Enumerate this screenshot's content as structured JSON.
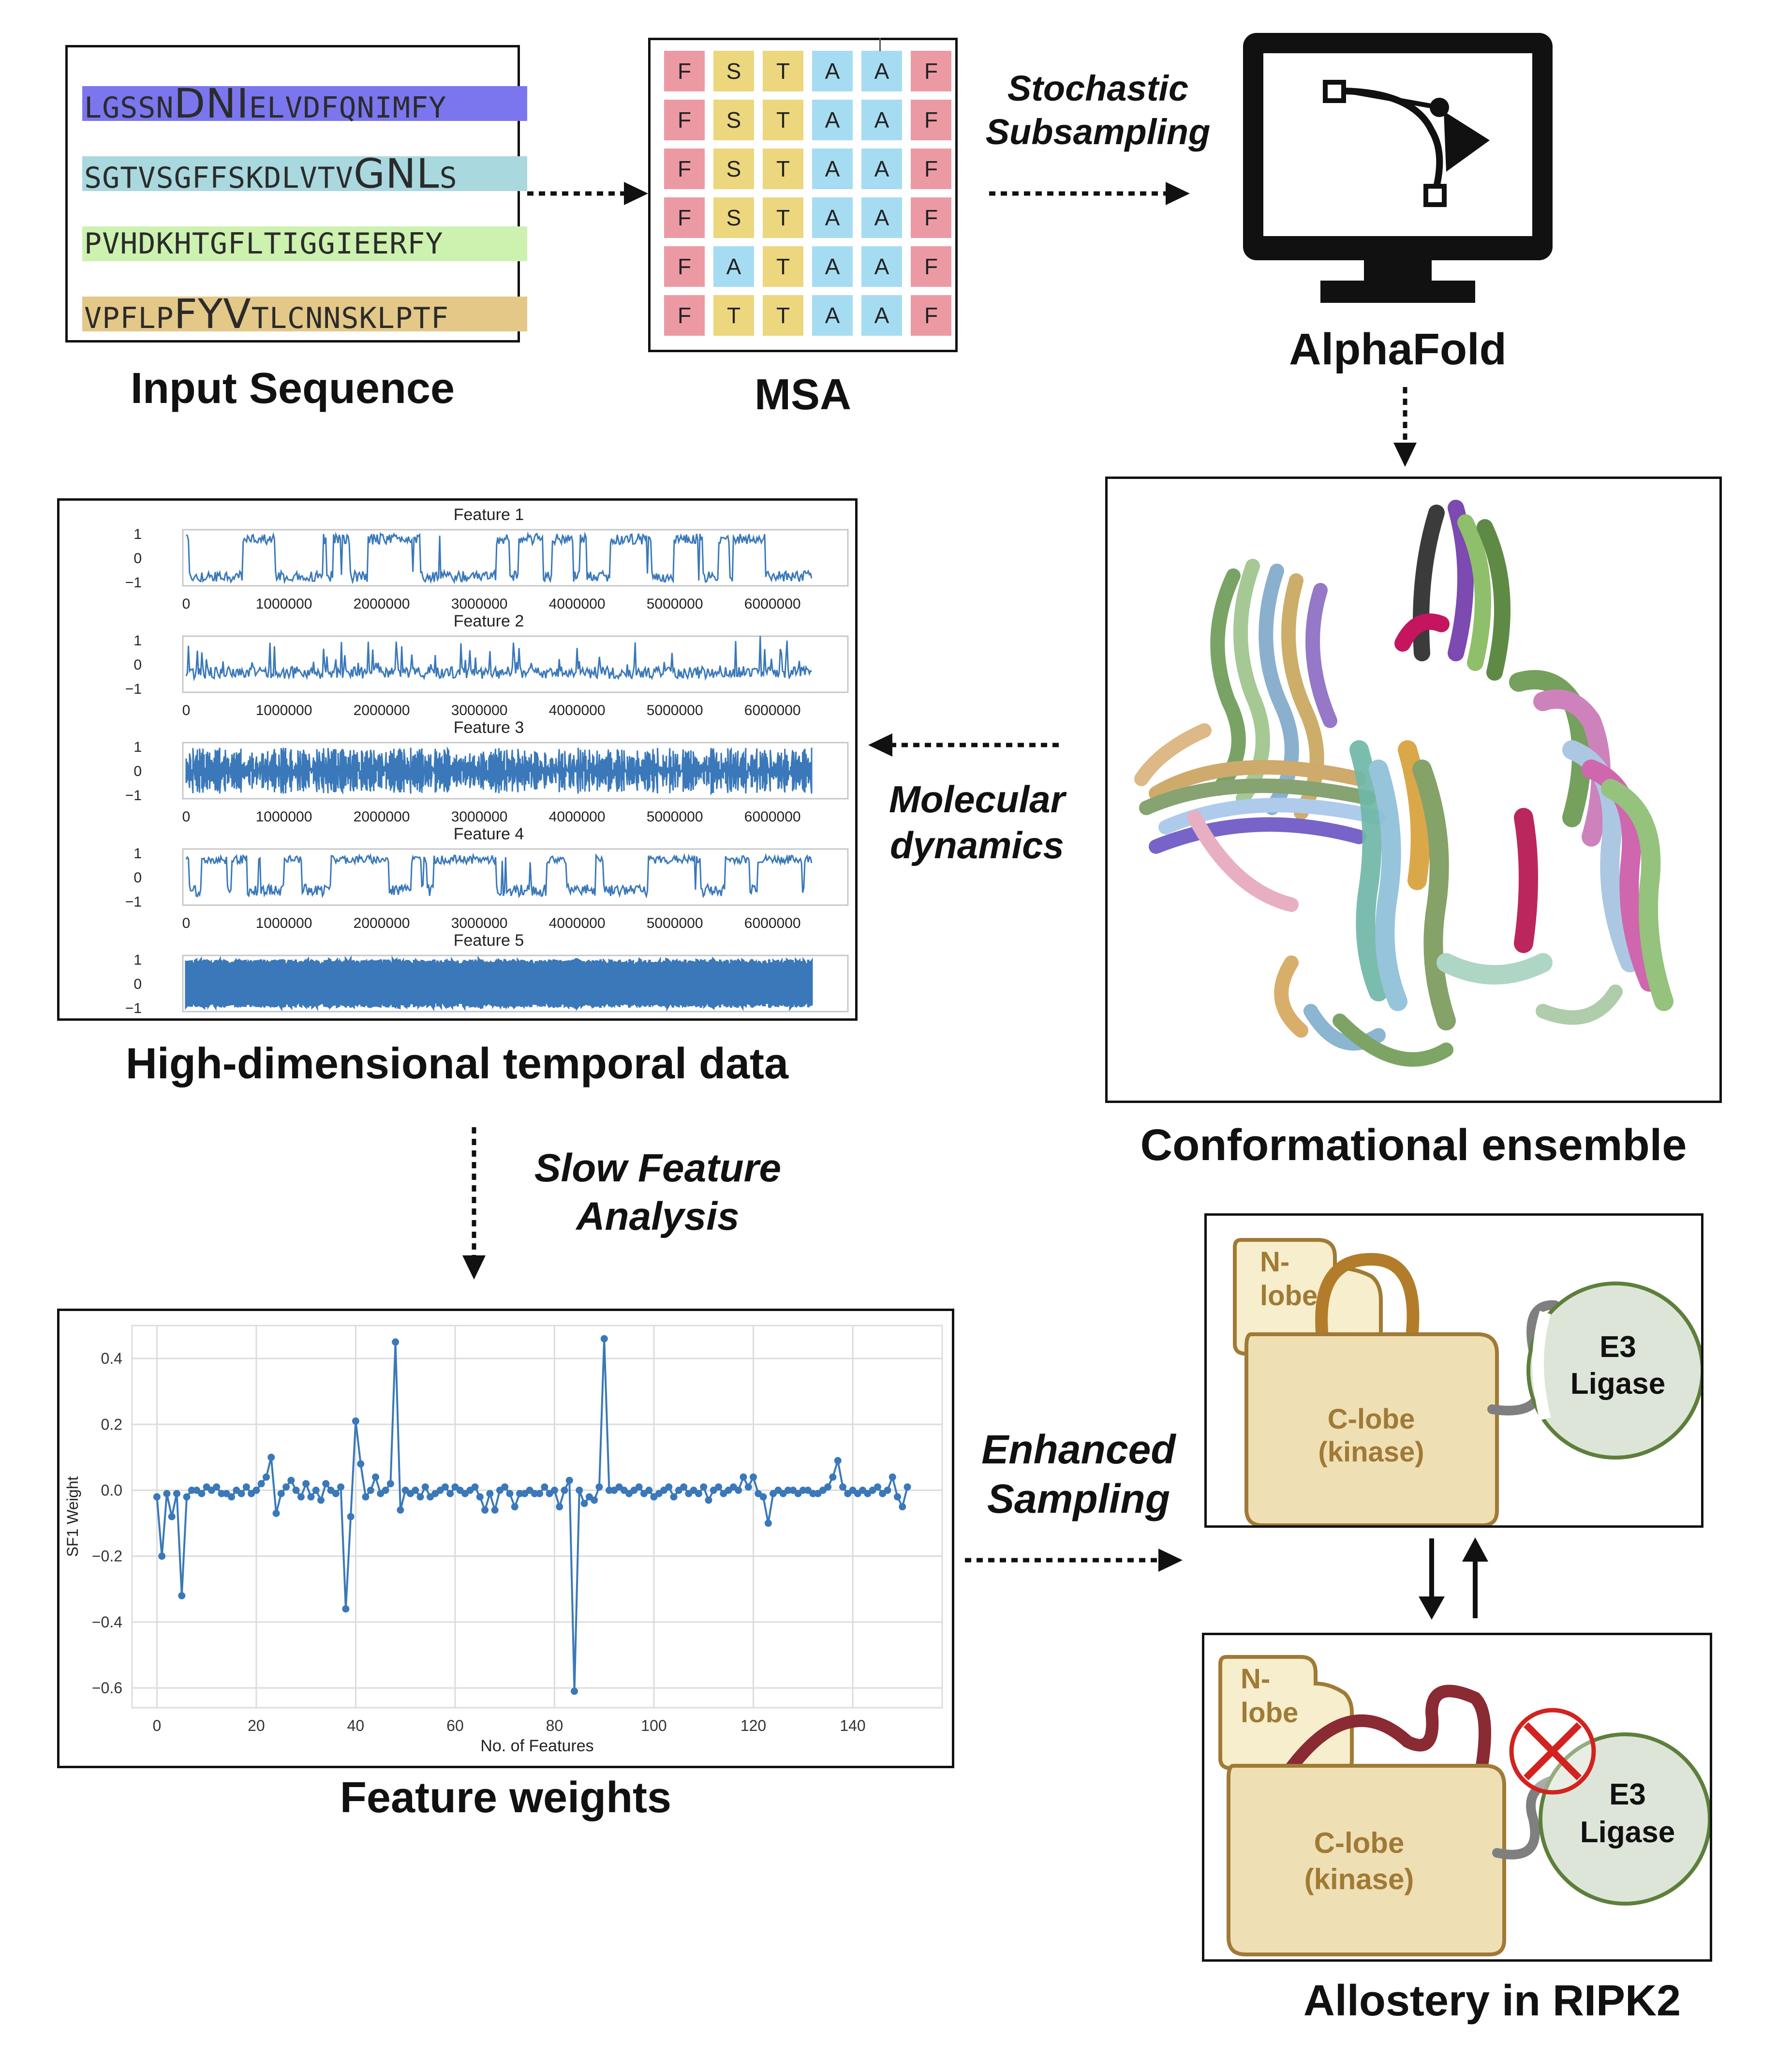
{
  "captions": {
    "input_sequence": "Input Sequence",
    "msa": "MSA",
    "alphafold": "AlphaFold",
    "temporal": "High-dimensional temporal data",
    "ensemble": "Conformational ensemble",
    "weights": "Feature weights",
    "allostery": "Allostery in RIPK2"
  },
  "arrows": {
    "stochastic_1": "Stochastic",
    "stochastic_2": "Subsampling",
    "md_1": "Molecular",
    "md_2": "dynamics",
    "sfa_1": "Slow Feature",
    "sfa_2": "Analysis",
    "enh_1": "Enhanced",
    "enh_2": "Sampling"
  },
  "sequences": [
    {
      "pre": "LGSSN",
      "big": "DNI",
      "post": "ELVDFQNIMFY",
      "color": "#7b76ee"
    },
    {
      "pre": "SGTVSGFFSKDLVTV",
      "big": "GNL",
      "post": "S",
      "color": "#a9d8de"
    },
    {
      "pre": "PVHDKHTGFLTIGGIEERFY",
      "big": "",
      "post": "",
      "color": "#cdf2b0"
    },
    {
      "pre": "VPFLP",
      "big": "FYV",
      "post": "TLCNNSKLPTF",
      "color": "#e3c888"
    }
  ],
  "msa_rows": [
    [
      "F",
      "S",
      "T",
      "A",
      "A",
      "F"
    ],
    [
      "F",
      "S",
      "T",
      "A",
      "A",
      "F"
    ],
    [
      "F",
      "S",
      "T",
      "A",
      "A",
      "F"
    ],
    [
      "F",
      "S",
      "T",
      "A",
      "A",
      "F"
    ],
    [
      "F",
      "A",
      "T",
      "A",
      "A",
      "F"
    ],
    [
      "F",
      "T",
      "T",
      "A",
      "A",
      "F"
    ]
  ],
  "features": {
    "titles": [
      "Feature 1",
      "Feature 2",
      "Feature 3",
      "Feature 4",
      "Feature 5"
    ],
    "y_ticks": [
      "1",
      "0",
      "−1"
    ],
    "x_ticks": [
      "0",
      "1000000",
      "2000000",
      "3000000",
      "4000000",
      "5000000",
      "6000000"
    ],
    "x_tick_values": [
      0,
      1000000,
      2000000,
      3000000,
      4000000,
      5000000,
      6000000
    ],
    "x_max": 6400000,
    "color": "#3a78b9"
  },
  "chart_data": {
    "type": "line",
    "xlabel": "No. of Features",
    "ylabel": "SF1 Weight",
    "xlim": [
      -5,
      158
    ],
    "ylim": [
      -0.66,
      0.5
    ],
    "x_ticks": [
      0,
      20,
      40,
      60,
      80,
      100,
      120,
      140
    ],
    "y_ticks": [
      0.4,
      0.2,
      0.0,
      -0.2,
      -0.4,
      -0.6
    ],
    "y_tick_labels": [
      "0.4",
      "0.2",
      "0.0",
      "−0.2",
      "−0.4",
      "−0.6"
    ],
    "grid": true,
    "color": "#3a78b9",
    "x": [
      0,
      1,
      2,
      3,
      4,
      5,
      6,
      7,
      8,
      9,
      10,
      11,
      12,
      13,
      14,
      15,
      16,
      17,
      18,
      19,
      20,
      21,
      22,
      23,
      24,
      25,
      26,
      27,
      28,
      29,
      30,
      31,
      32,
      33,
      34,
      35,
      36,
      37,
      38,
      39,
      40,
      41,
      42,
      43,
      44,
      45,
      46,
      47,
      48,
      49,
      50,
      51,
      52,
      53,
      54,
      55,
      56,
      57,
      58,
      59,
      60,
      61,
      62,
      63,
      64,
      65,
      66,
      67,
      68,
      69,
      70,
      71,
      72,
      73,
      74,
      75,
      76,
      77,
      78,
      79,
      80,
      81,
      82,
      83,
      84,
      85,
      86,
      87,
      88,
      89,
      90,
      91,
      92,
      93,
      94,
      95,
      96,
      97,
      98,
      99,
      100,
      101,
      102,
      103,
      104,
      105,
      106,
      107,
      108,
      109,
      110,
      111,
      112,
      113,
      114,
      115,
      116,
      117,
      118,
      119,
      120,
      121,
      122,
      123,
      124,
      125,
      126,
      127,
      128,
      129,
      130,
      131,
      132,
      133,
      134,
      135,
      136,
      137,
      138,
      139,
      140,
      141,
      142,
      143,
      144,
      145,
      146,
      147,
      148,
      149,
      150,
      151
    ],
    "y": [
      -0.02,
      -0.2,
      -0.01,
      -0.08,
      -0.01,
      -0.32,
      -0.02,
      0.0,
      0.0,
      -0.01,
      0.01,
      0.0,
      0.01,
      -0.01,
      -0.01,
      -0.02,
      0.0,
      -0.01,
      0.01,
      -0.01,
      0.0,
      0.02,
      0.04,
      0.1,
      -0.07,
      -0.01,
      0.01,
      0.03,
      0.0,
      -0.02,
      0.02,
      -0.02,
      0.0,
      -0.03,
      0.02,
      0.0,
      -0.01,
      0.01,
      -0.36,
      -0.08,
      0.21,
      0.08,
      -0.02,
      0.0,
      0.04,
      -0.01,
      0.0,
      0.02,
      0.45,
      -0.06,
      0.0,
      -0.01,
      0.0,
      -0.02,
      0.01,
      -0.02,
      -0.01,
      0.0,
      0.01,
      -0.01,
      0.01,
      0.0,
      -0.01,
      0.0,
      0.01,
      -0.02,
      -0.06,
      -0.01,
      -0.06,
      0.0,
      0.01,
      -0.01,
      -0.05,
      -0.01,
      -0.01,
      0.0,
      -0.01,
      -0.01,
      0.01,
      -0.01,
      0.0,
      -0.05,
      0.0,
      0.03,
      -0.61,
      0.0,
      -0.04,
      -0.02,
      -0.03,
      0.01,
      0.46,
      0.0,
      0.0,
      0.01,
      0.0,
      -0.01,
      0.0,
      0.01,
      -0.01,
      0.0,
      -0.02,
      -0.01,
      0.0,
      0.01,
      -0.02,
      0.0,
      0.01,
      -0.01,
      0.0,
      -0.01,
      0.01,
      -0.03,
      0.0,
      0.01,
      -0.01,
      0.0,
      0.01,
      0.0,
      0.04,
      0.01,
      0.04,
      -0.01,
      -0.02,
      -0.1,
      -0.01,
      0.0,
      -0.01,
      0.0,
      0.0,
      -0.01,
      0.0,
      0.0,
      -0.01,
      -0.01,
      0.0,
      0.01,
      0.04,
      0.09,
      0.01,
      -0.01,
      0.0,
      -0.01,
      0.0,
      -0.01,
      0.0,
      0.01,
      -0.01,
      0.0,
      0.04,
      -0.02,
      -0.05,
      0.01
    ]
  },
  "allostery": {
    "nlobe_1": "N-",
    "nlobe_2": "lobe",
    "clobe_1": "C-lobe",
    "clobe_2": "(kinase)",
    "e3_1": "E3",
    "e3_2": "Ligase",
    "label_color": "#a07a36"
  },
  "colors": {
    "accent_blue": "#3a78b9",
    "msa_F": "#eb9aa3",
    "msa_S": "#ecd67e",
    "msa_A": "#a6dcf2",
    "lobe_fill": "#efdfb4",
    "nlobe_fill": "#f6eecc",
    "e3_fill": "#dde5d8",
    "e3_stroke": "#5e7f3c",
    "loop_active": "#b37c2a",
    "loop_inactive": "#8a2a33"
  }
}
